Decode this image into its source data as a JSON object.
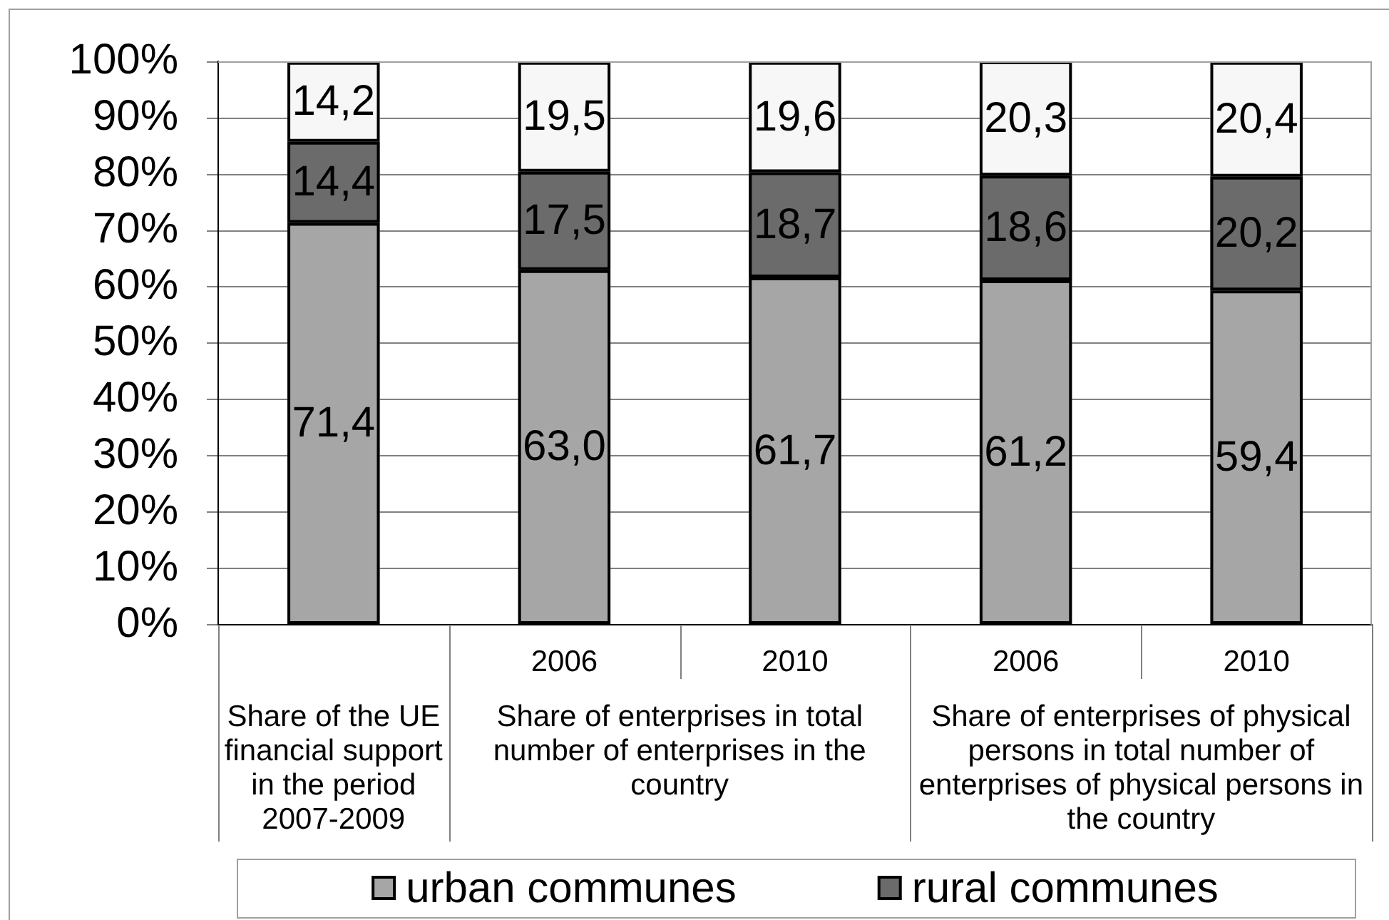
{
  "chart_data": {
    "type": "bar",
    "stacked": true,
    "categories": [
      null,
      "2006",
      "2010",
      "2006",
      "2010"
    ],
    "series": [
      {
        "name": "urban communes",
        "color": "#a6a6a6",
        "values": [
          71.4,
          63.0,
          61.7,
          61.2,
          59.4
        ],
        "value_labels": [
          "71,4",
          "63,0",
          "61,7",
          "61,2",
          "59,4"
        ]
      },
      {
        "name": "rural communes",
        "color": "#6b6b6b",
        "values": [
          14.4,
          17.5,
          18.7,
          18.6,
          20.2
        ],
        "value_labels": [
          "14,4",
          "17,5",
          "18,7",
          "18,6",
          "20,2"
        ]
      },
      {
        "color": "#f7f7f7",
        "values": [
          14.2,
          19.5,
          19.6,
          20.3,
          20.4
        ],
        "value_labels": [
          "14,2",
          "19,5",
          "19,6",
          "20,3",
          "20,4"
        ]
      }
    ],
    "ylim": [
      0,
      100.1
    ],
    "yticks": [
      {
        "value": 0,
        "label": "0%"
      },
      {
        "value": 10,
        "label": "10%"
      },
      {
        "value": 20,
        "label": "20%"
      },
      {
        "value": 30,
        "label": "30%"
      },
      {
        "value": 40,
        "label": "40%"
      },
      {
        "value": 50,
        "label": "50%"
      },
      {
        "value": 60,
        "label": "60%"
      },
      {
        "value": 70,
        "label": "70%"
      },
      {
        "value": 80,
        "label": "80%"
      },
      {
        "value": 90,
        "label": "90%"
      },
      {
        "value": 100,
        "label": "100%"
      }
    ],
    "grid": "y",
    "legend": "bottom",
    "annotations": [
      "Share of the UE financial support in the period 2007-2009",
      "Share of enterprises in total number of enterprises in the country",
      "Share of enterprises of physical persons in total number of enterprises of physical persons in the country"
    ]
  }
}
